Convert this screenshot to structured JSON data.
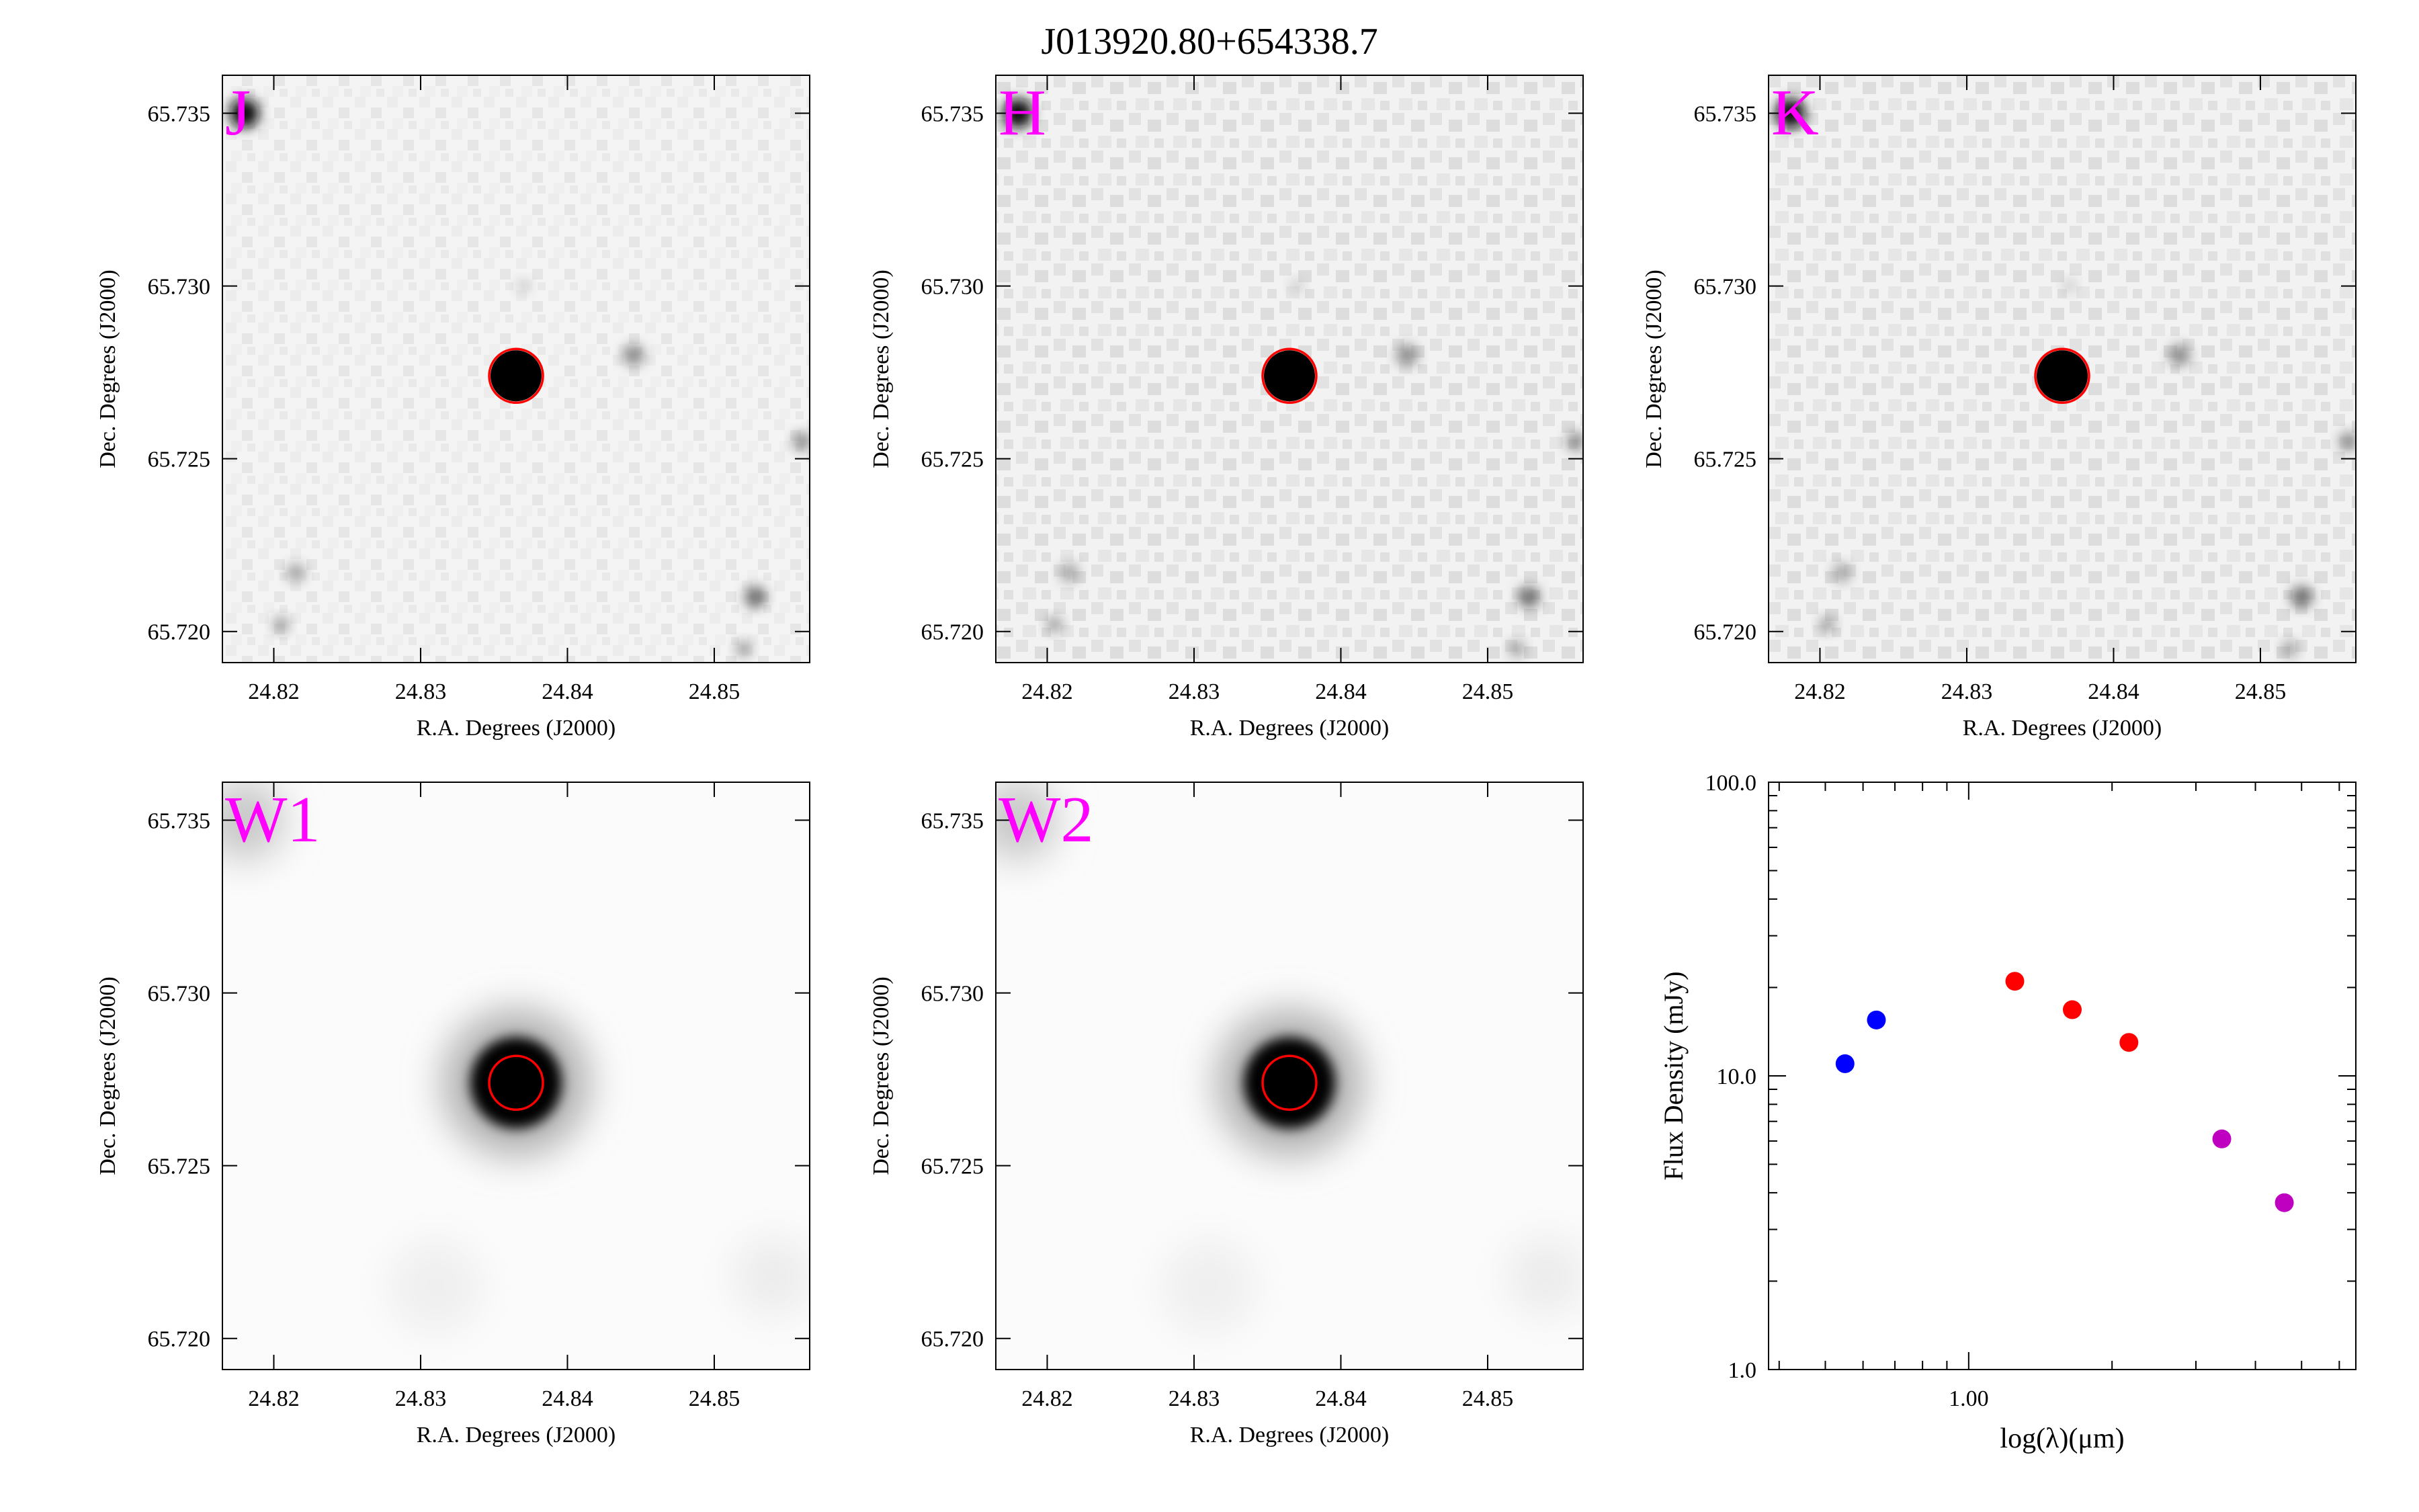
{
  "title": "J013920.80+654338.7",
  "image_axes": {
    "xlabel": "R.A. Degrees (J2000)",
    "ylabel": "Dec. Degrees (J2000)",
    "xlim": [
      24.8165,
      24.8565
    ],
    "ylim": [
      65.7191,
      65.7361
    ],
    "xticks": [
      "24.82",
      "24.83",
      "24.84",
      "24.85"
    ],
    "yticks": [
      "65.735",
      "65.730",
      "65.725",
      "65.720"
    ],
    "xtick_values": [
      24.82,
      24.83,
      24.84,
      24.85
    ],
    "ytick_values": [
      65.735,
      65.73,
      65.725,
      65.72
    ]
  },
  "panels": [
    {
      "band": "J",
      "label_color": "#ff00ff",
      "source": {
        "ra": 24.8365,
        "dec": 65.7274
      }
    },
    {
      "band": "H",
      "label_color": "#ff00ff",
      "source": {
        "ra": 24.8365,
        "dec": 65.7274
      }
    },
    {
      "band": "K",
      "label_color": "#ff00ff",
      "source": {
        "ra": 24.8365,
        "dec": 65.7274
      }
    },
    {
      "band": "W1",
      "label_color": "#ff00ff",
      "source": {
        "ra": 24.8365,
        "dec": 65.7274
      }
    },
    {
      "band": "W2",
      "label_color": "#ff00ff",
      "source": {
        "ra": 24.8365,
        "dec": 65.7274
      }
    }
  ],
  "chart_data": {
    "type": "scatter",
    "title": "",
    "xlabel": "log(λ)(μm)",
    "ylabel": "Flux Density (mJy)",
    "xscale": "log",
    "yscale": "log",
    "xlim": [
      0.38,
      6.5
    ],
    "ylim": [
      1.0,
      100.0
    ],
    "xticks": [
      "1.00"
    ],
    "xtick_values": [
      1.0
    ],
    "yticks": [
      "100.0",
      "10.0",
      "1.0"
    ],
    "ytick_values": [
      100,
      10,
      1
    ],
    "legend": "none",
    "grid": false,
    "series": [
      {
        "color": "#0000ff",
        "points": [
          {
            "x": 0.55,
            "y": 11.0
          },
          {
            "x": 0.64,
            "y": 15.5
          }
        ]
      },
      {
        "color": "#ff0000",
        "points": [
          {
            "x": 1.25,
            "y": 21.0
          },
          {
            "x": 1.65,
            "y": 16.8
          },
          {
            "x": 2.17,
            "y": 13.0
          }
        ]
      },
      {
        "color": "#c000c0",
        "points": [
          {
            "x": 3.4,
            "y": 6.1
          },
          {
            "x": 4.6,
            "y": 3.7
          }
        ]
      }
    ]
  }
}
